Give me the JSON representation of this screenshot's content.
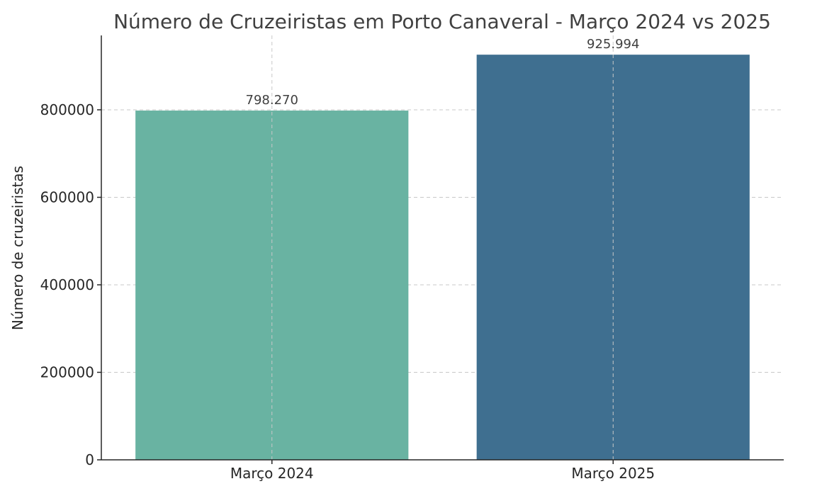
{
  "chart_data": {
    "type": "bar",
    "title": "Número de Cruzeiristas em Porto Canaveral - Março 2024 vs 2025",
    "xlabel": "",
    "ylabel": "Número de cruzeiristas",
    "categories": [
      "Março 2024",
      "Março 2025"
    ],
    "values": [
      798270,
      925994
    ],
    "data_labels": [
      "798.270",
      "925.994"
    ],
    "colors": [
      "#69b3a2",
      "#3f6f90"
    ],
    "ylim": [
      0,
      970000
    ],
    "yticks": [
      0,
      200000,
      400000,
      600000,
      800000
    ],
    "ytick_labels": [
      "0",
      "200000",
      "400000",
      "600000",
      "800000"
    ],
    "grid": true
  }
}
